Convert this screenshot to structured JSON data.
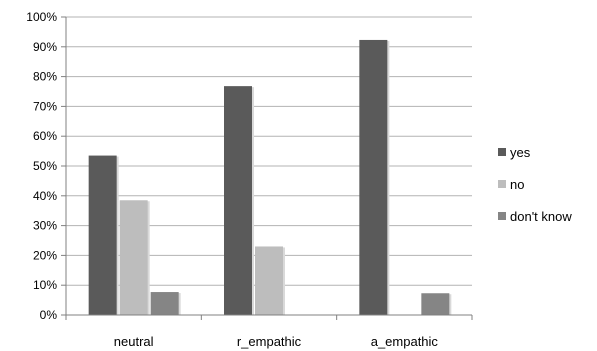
{
  "chart_data": {
    "type": "bar",
    "title": "",
    "xlabel": "",
    "ylabel": "",
    "categories": [
      "neutral",
      "r_empathic",
      "a_empathic"
    ],
    "series": [
      {
        "name": "yes",
        "color": "#5a5a5a",
        "values": [
          53.5,
          76.8,
          92.3
        ]
      },
      {
        "name": "no",
        "color": "#bdbdbd",
        "values": [
          38.5,
          23.0,
          0
        ]
      },
      {
        "name": "don't know",
        "color": "#858585",
        "values": [
          7.7,
          0,
          7.3
        ]
      }
    ],
    "ylim": [
      0,
      100
    ],
    "yticks": [
      "0%",
      "10%",
      "20%",
      "30%",
      "40%",
      "50%",
      "60%",
      "70%",
      "80%",
      "90%",
      "100%"
    ],
    "grid": true,
    "legend_position": "right"
  }
}
